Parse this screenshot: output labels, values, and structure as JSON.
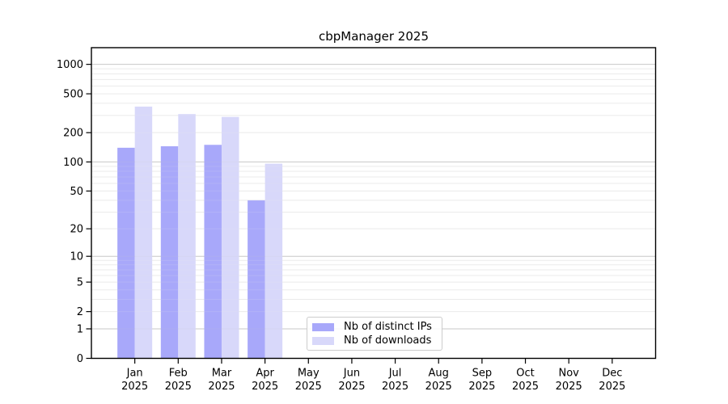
{
  "title": "cbpManager 2025",
  "chart_data": {
    "type": "bar",
    "title": "cbpManager 2025",
    "categories": [
      "Jan",
      "Feb",
      "Mar",
      "Apr",
      "May",
      "Jun",
      "Jul",
      "Aug",
      "Sep",
      "Oct",
      "Nov",
      "Dec"
    ],
    "x_tick_second_line": "2025",
    "series": [
      {
        "name": "Nb of distinct IPs",
        "color": "#a8a8fa",
        "values": [
          140,
          145,
          150,
          40,
          0,
          0,
          0,
          0,
          0,
          0,
          0,
          0
        ]
      },
      {
        "name": "Nb of downloads",
        "color": "#d8d8fa",
        "values": [
          370,
          310,
          290,
          96,
          0,
          0,
          0,
          0,
          0,
          0,
          0,
          0
        ]
      }
    ],
    "y_scale": "log10(1+v)",
    "y_ticks": [
      0,
      1,
      2,
      5,
      10,
      20,
      50,
      100,
      200,
      500,
      1000
    ],
    "ylim": [
      0,
      1480
    ],
    "xlabel": "",
    "ylabel": "",
    "grid": "horizontal log major+minor",
    "legend_position": "lower center"
  },
  "colors": {
    "background": "#ffffff",
    "text": "#000000",
    "frame": "#000000",
    "grid_major": "#c9c9c9",
    "grid_minor": "#ebebeb",
    "legend_border": "#cccccc",
    "bar_distinct_ips": "#a8a8fa",
    "bar_downloads": "#d8d8fa"
  }
}
